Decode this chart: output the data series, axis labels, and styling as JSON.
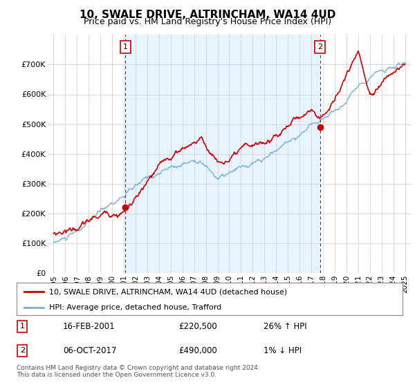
{
  "title": "10, SWALE DRIVE, ALTRINCHAM, WA14 4UD",
  "subtitle": "Price paid vs. HM Land Registry's House Price Index (HPI)",
  "property_line_color": "#cc0000",
  "hpi_line_color": "#7bafd4",
  "shade_color": "#ddeeff",
  "sale1_date_label": "16-FEB-2001",
  "sale1_price": 220500,
  "sale1_hpi_change": "26% ↑ HPI",
  "sale1_x": 2001.12,
  "sale2_date_label": "06-OCT-2017",
  "sale2_price": 490000,
  "sale2_hpi_change": "1% ↓ HPI",
  "sale2_x": 2017.76,
  "legend_label1": "10, SWALE DRIVE, ALTRINCHAM, WA14 4UD (detached house)",
  "legend_label2": "HPI: Average price, detached house, Trafford",
  "footnote": "Contains HM Land Registry data © Crown copyright and database right 2024.\nThis data is licensed under the Open Government Licence v3.0.",
  "ylim_min": 0,
  "ylim_max": 800000,
  "xlim_min": 1994.5,
  "xlim_max": 2025.5,
  "yticks": [
    0,
    100000,
    200000,
    300000,
    400000,
    500000,
    600000,
    700000
  ],
  "ytick_labels": [
    "£0",
    "£100K",
    "£200K",
    "£300K",
    "£400K",
    "£500K",
    "£600K",
    "£700K"
  ],
  "xticks": [
    1995,
    1996,
    1997,
    1998,
    1999,
    2000,
    2001,
    2002,
    2003,
    2004,
    2005,
    2006,
    2007,
    2008,
    2009,
    2010,
    2011,
    2012,
    2013,
    2014,
    2015,
    2016,
    2017,
    2018,
    2019,
    2020,
    2021,
    2022,
    2023,
    2024,
    2025
  ],
  "background_color": "#ffffff",
  "grid_color": "#cccccc"
}
